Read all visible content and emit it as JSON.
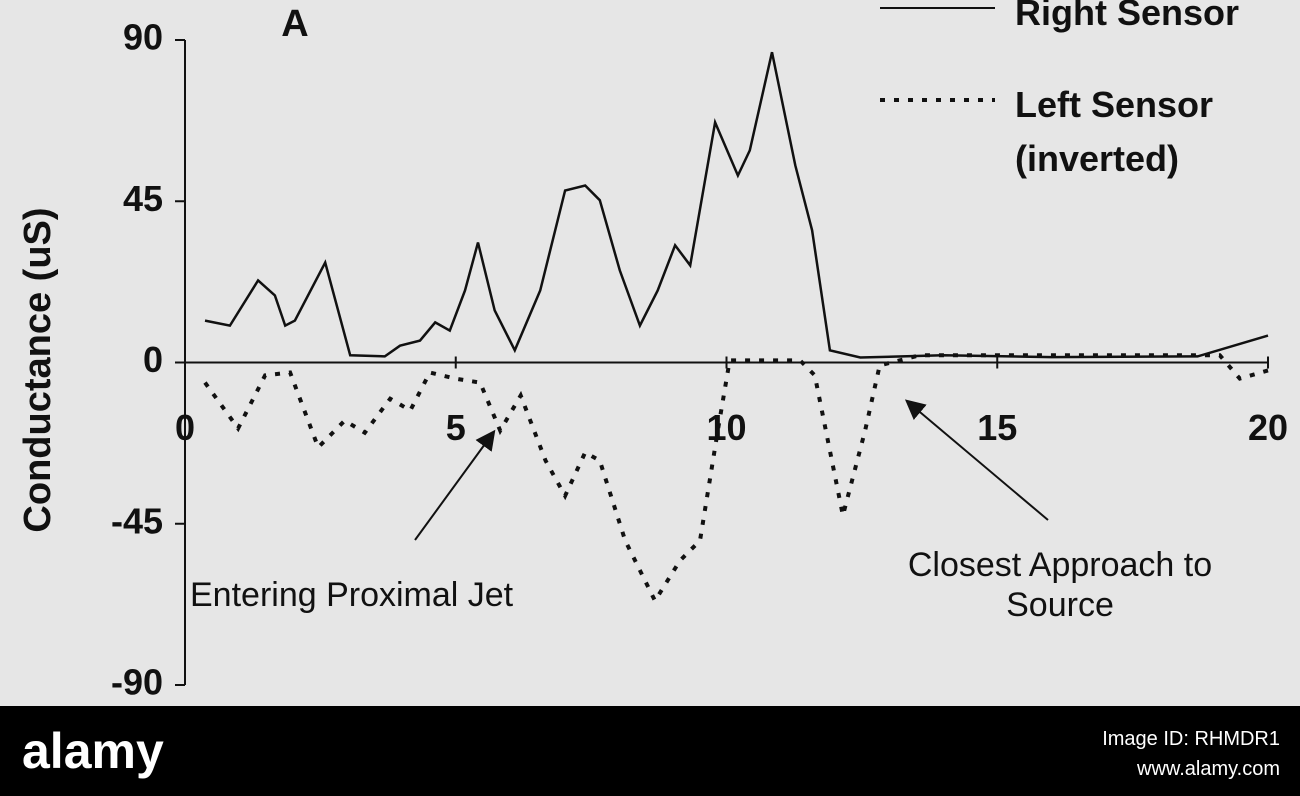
{
  "chart_data": {
    "type": "line",
    "title": "A",
    "y_label": "Conductance (uS)",
    "xlim": [
      0,
      20
    ],
    "xticks": [
      0,
      5,
      10,
      15,
      20
    ],
    "ylim": [
      -90,
      90
    ],
    "yticks": [
      90,
      45,
      0,
      -45,
      -90
    ],
    "legend": "upper right",
    "series": [
      {
        "name": "Right Sensor",
        "color": "#111111",
        "linestyle": "solid",
        "x": [
          0.37,
          0.83,
          1.35,
          1.66,
          1.85,
          2.03,
          2.59,
          3.05,
          3.69,
          3.97,
          4.34,
          4.62,
          4.89,
          5.17,
          5.41,
          5.72,
          6.09,
          6.56,
          7.02,
          7.39,
          7.66,
          8.03,
          8.4,
          8.73,
          9.05,
          9.33,
          9.79,
          10.21,
          10.43,
          10.84,
          11.27,
          11.58,
          11.91,
          12.47,
          14,
          16,
          18.7,
          20
        ],
        "values": [
          11.7,
          10.3,
          22.9,
          18.7,
          10.3,
          11.7,
          27.9,
          2,
          1.7,
          4.7,
          6.1,
          11.2,
          8.9,
          20.1,
          33.5,
          14.5,
          3.4,
          20.1,
          48,
          49.4,
          45.3,
          25.7,
          10.3,
          20.1,
          32.7,
          27.1,
          67,
          52.2,
          59.2,
          86.6,
          55,
          36.9,
          3.4,
          1.4,
          2,
          1.5,
          1.7,
          7.5
        ]
      },
      {
        "name": "Left Sensor (inverted)",
        "color": "#111111",
        "linestyle": "dashed",
        "x": [
          0.37,
          0.98,
          1.48,
          1.94,
          2.46,
          2.95,
          3.32,
          3.79,
          4.16,
          4.52,
          4.99,
          5.45,
          5.82,
          6.2,
          6.66,
          7.02,
          7.39,
          7.66,
          8.13,
          8.68,
          9.14,
          9.51,
          9.84,
          10.06,
          11.36,
          11.63,
          12.15,
          12.56,
          12.83,
          13.57,
          19.11,
          19.48,
          20
        ],
        "values": [
          -5.6,
          -18.4,
          -3.6,
          -2.8,
          -23.7,
          -16.2,
          -19.6,
          -10.1,
          -13.4,
          -2.8,
          -4.5,
          -5.6,
          -19,
          -9.2,
          -27.4,
          -37.2,
          -25.1,
          -27.4,
          -49.7,
          -66.5,
          -55.3,
          -49.7,
          -19,
          0.6,
          0.6,
          -3.6,
          -42.7,
          -19,
          -0.8,
          2,
          2,
          -4.5,
          -2.2
        ]
      }
    ],
    "annotations": [
      {
        "text": "Entering Proximal Jet"
      },
      {
        "text": "Closest Approach to Source"
      }
    ]
  },
  "footer": {
    "brand": "alamy",
    "image_id": "Image ID: RHMDR1",
    "url": "www.alamy.com"
  }
}
